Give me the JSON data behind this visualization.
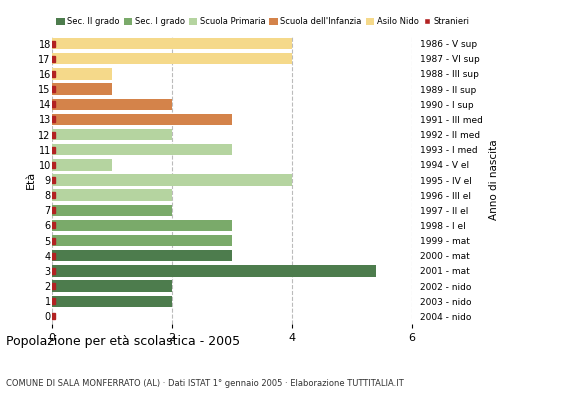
{
  "ages": [
    18,
    17,
    16,
    15,
    14,
    13,
    12,
    11,
    10,
    9,
    8,
    7,
    6,
    5,
    4,
    3,
    2,
    1,
    0
  ],
  "years": [
    "1986 - V sup",
    "1987 - VI sup",
    "1988 - III sup",
    "1989 - II sup",
    "1990 - I sup",
    "1991 - III med",
    "1992 - II med",
    "1993 - I med",
    "1994 - V el",
    "1995 - IV el",
    "1996 - III el",
    "1997 - II el",
    "1998 - I el",
    "1999 - mat",
    "2000 - mat",
    "2001 - mat",
    "2002 - nido",
    "2003 - nido",
    "2004 - nido"
  ],
  "values": [
    0,
    2,
    2,
    5.4,
    3.0,
    3.0,
    3.0,
    2.0,
    2.0,
    4.0,
    1.0,
    3.0,
    2.0,
    3.0,
    2.0,
    1.0,
    1.0,
    4.0,
    4.0
  ],
  "bar_colors": [
    "#4d7c4d",
    "#4d7c4d",
    "#4d7c4d",
    "#4d7c4d",
    "#4d7c4d",
    "#7aaa6a",
    "#7aaa6a",
    "#7aaa6a",
    "#b5d4a0",
    "#b5d4a0",
    "#b5d4a0",
    "#b5d4a0",
    "#b5d4a0",
    "#d4834a",
    "#d4834a",
    "#d4834a",
    "#f5d98a",
    "#f5d98a",
    "#f5d98a"
  ],
  "stranieri_color": "#b22222",
  "stranieri_marker_size": 4,
  "legend_labels": [
    "Sec. II grado",
    "Sec. I grado",
    "Scuola Primaria",
    "Scuola dell'Infanzia",
    "Asilo Nido",
    "Stranieri"
  ],
  "legend_colors": [
    "#4d7c4d",
    "#7aaa6a",
    "#b5d4a0",
    "#d4834a",
    "#f5d98a",
    "#b22222"
  ],
  "title": "Popolazione per età scolastica - 2005",
  "subtitle": "COMUNE DI SALA MONFERRATO (AL) · Dati ISTAT 1° gennaio 2005 · Elaborazione TUTTITALIA.IT",
  "ylabel": "Età",
  "right_label": "Anno di nascita",
  "xlim": [
    0,
    6
  ],
  "xticks": [
    0,
    2,
    4,
    6
  ],
  "bg_color": "#ffffff",
  "grid_color": "#bbbbbb"
}
